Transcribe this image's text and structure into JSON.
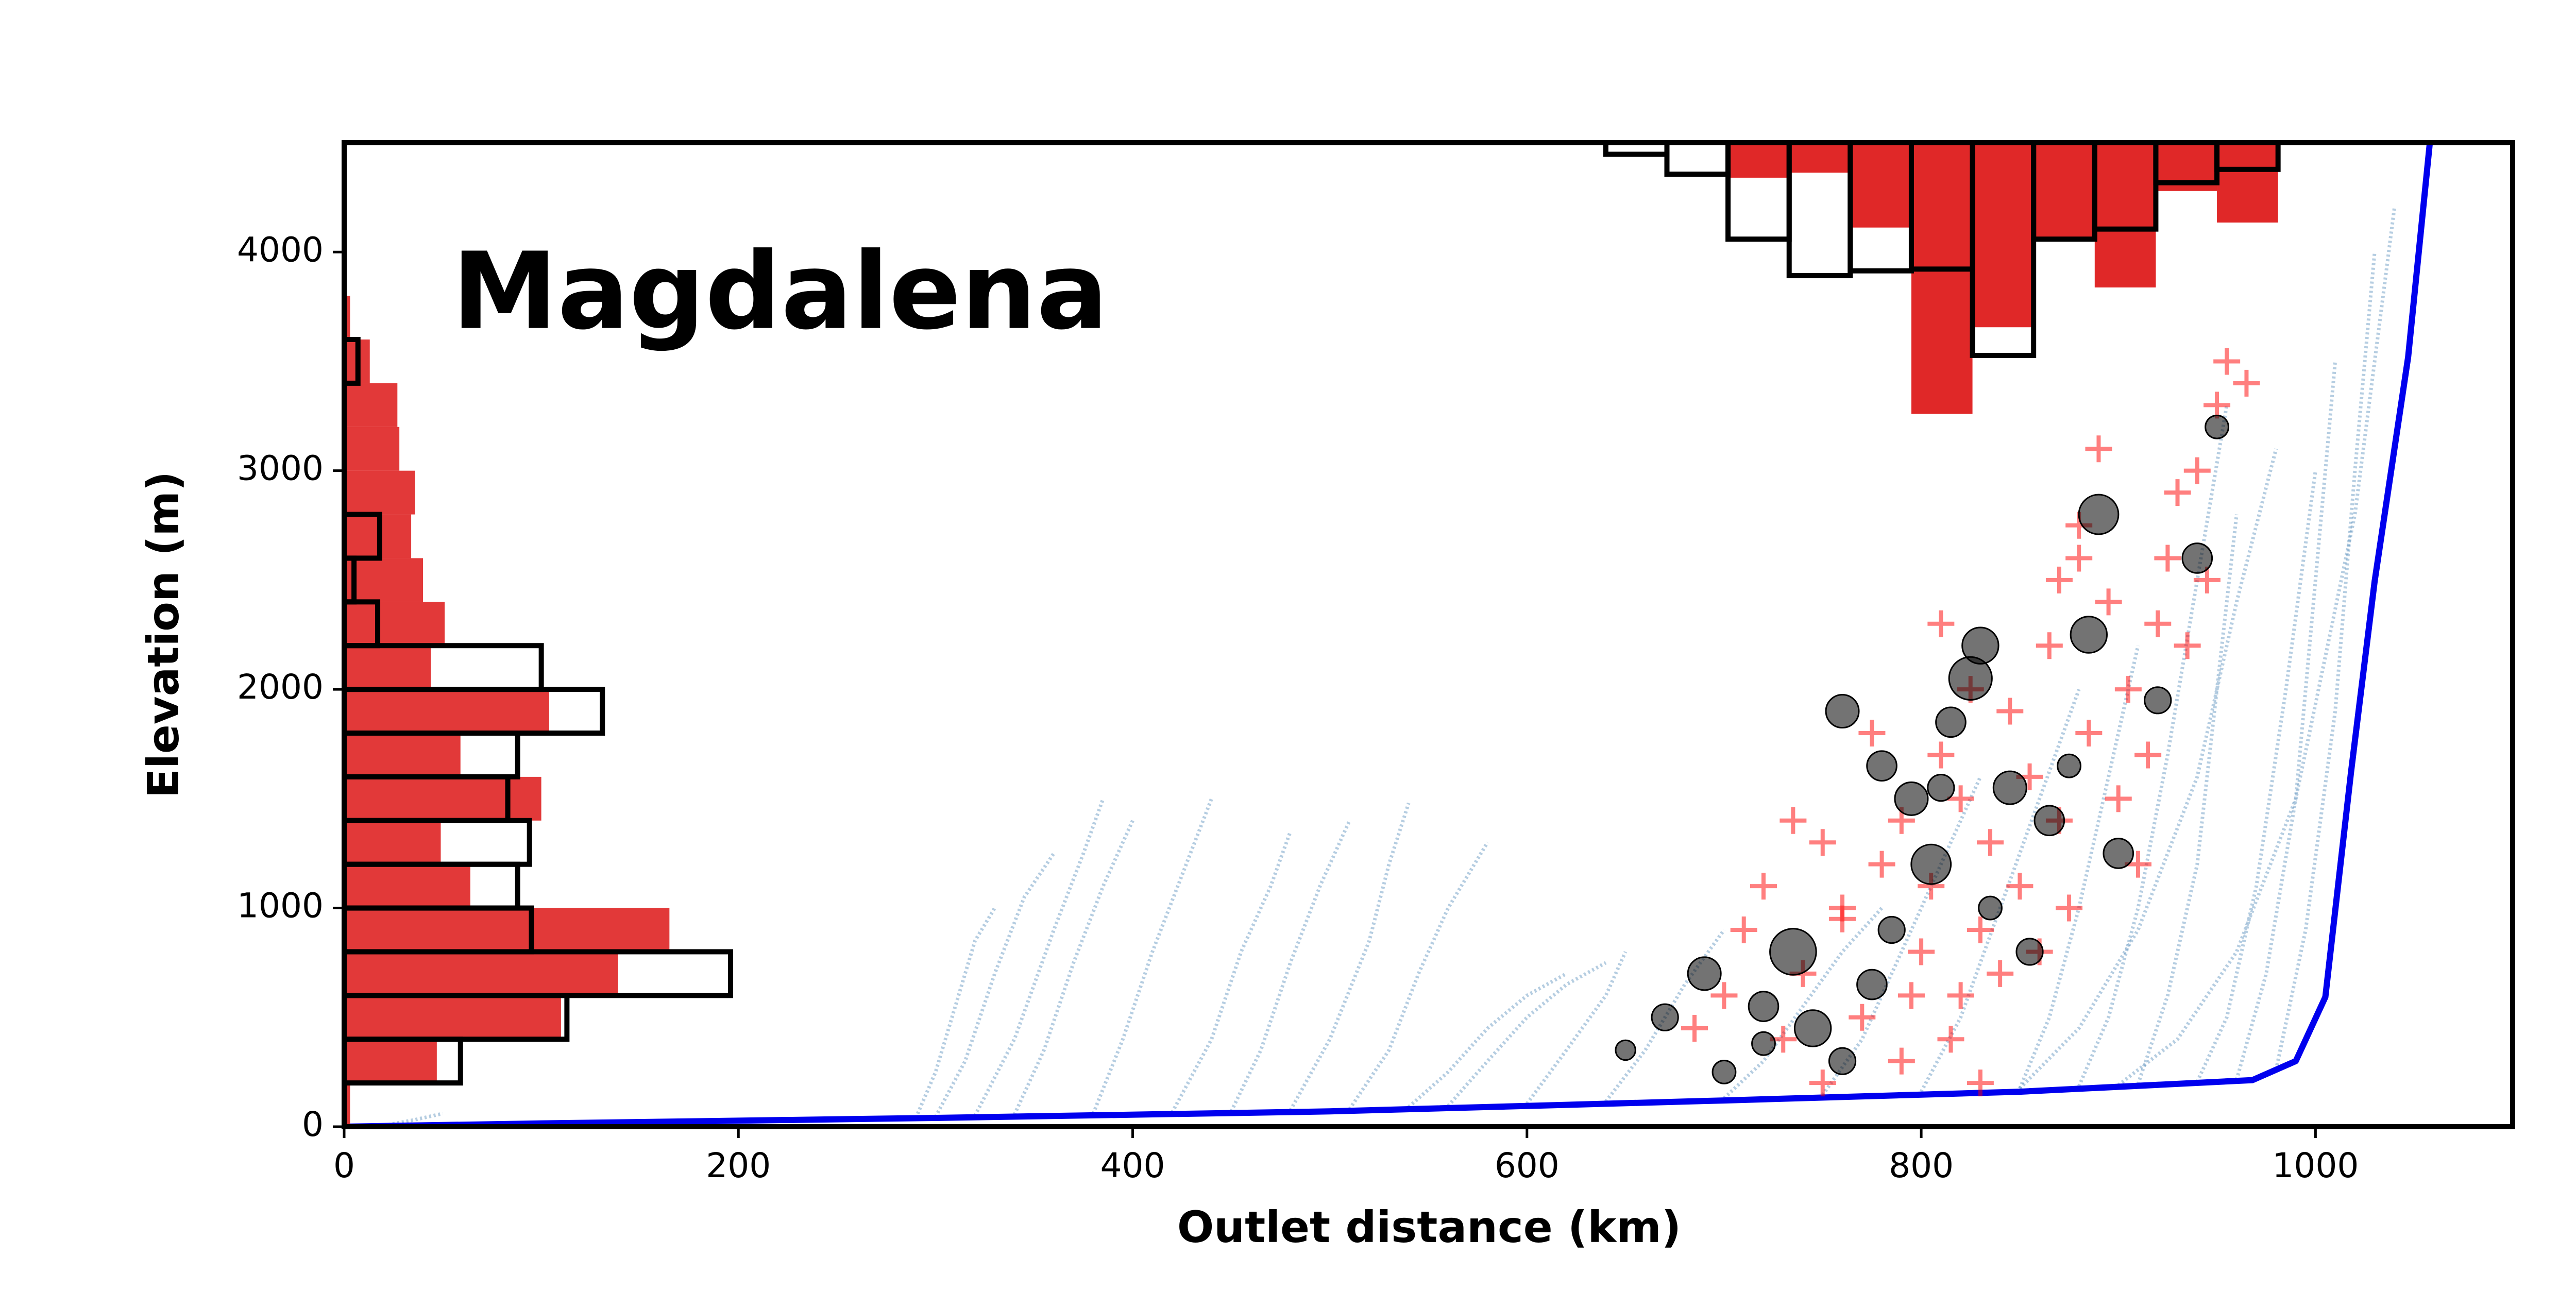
{
  "chart_data": {
    "type": "scatter",
    "title": "Magdalena",
    "x_label": "Outlet distance (km)",
    "y_label": "Elevation (m)",
    "xlim": [
      0,
      1100
    ],
    "ylim": [
      0,
      4500
    ],
    "xticks": [
      0,
      200,
      400,
      600,
      800,
      1000
    ],
    "yticks": [
      0,
      1000,
      2000,
      3000,
      4000
    ],
    "main_profile": {
      "color": "#0000ee",
      "x": [
        0,
        100,
        300,
        500,
        700,
        850,
        968,
        990,
        1005,
        1018,
        1030,
        1047,
        1058
      ],
      "values": [
        0,
        15,
        40,
        70,
        120,
        160,
        213,
        300,
        593,
        1620,
        2494,
        3520,
        4500
      ]
    },
    "tributary_color": "#4682b4",
    "tributaries": [
      {
        "x": [
          20,
          35,
          50
        ],
        "values": [
          5,
          30,
          60
        ]
      },
      {
        "x": [
          290,
          300,
          310,
          320,
          330
        ],
        "values": [
          40,
          250,
          550,
          850,
          1000
        ]
      },
      {
        "x": [
          300,
          315,
          330,
          345,
          360
        ],
        "values": [
          45,
          300,
          700,
          1050,
          1250
        ]
      },
      {
        "x": [
          320,
          340,
          360,
          375,
          385
        ],
        "values": [
          50,
          400,
          900,
          1250,
          1500
        ]
      },
      {
        "x": [
          340,
          355,
          370,
          385,
          400
        ],
        "values": [
          55,
          350,
          750,
          1100,
          1400
        ]
      },
      {
        "x": [
          380,
          395,
          410,
          425,
          440
        ],
        "values": [
          60,
          400,
          800,
          1150,
          1500
        ]
      },
      {
        "x": [
          420,
          440,
          455,
          470,
          480
        ],
        "values": [
          65,
          400,
          800,
          1100,
          1350
        ]
      },
      {
        "x": [
          450,
          465,
          480,
          495,
          510
        ],
        "values": [
          70,
          350,
          750,
          1100,
          1400
        ]
      },
      {
        "x": [
          480,
          500,
          520,
          530,
          540
        ],
        "values": [
          75,
          400,
          850,
          1200,
          1480
        ]
      },
      {
        "x": [
          510,
          530,
          545,
          560,
          580
        ],
        "values": [
          80,
          350,
          700,
          1000,
          1300
        ]
      },
      {
        "x": [
          540,
          560,
          580,
          600,
          620
        ],
        "values": [
          90,
          250,
          450,
          600,
          700
        ]
      },
      {
        "x": [
          560,
          580,
          600,
          620,
          640
        ],
        "values": [
          95,
          300,
          500,
          650,
          750
        ]
      },
      {
        "x": [
          600,
          620,
          640,
          650
        ],
        "values": [
          105,
          350,
          600,
          800
        ]
      },
      {
        "x": [
          640,
          660,
          680,
          700
        ],
        "values": [
          115,
          350,
          650,
          900
        ]
      },
      {
        "x": [
          700,
          720,
          740,
          760,
          780
        ],
        "values": [
          130,
          300,
          550,
          800,
          1000
        ]
      },
      {
        "x": [
          750,
          770,
          790,
          810,
          830
        ],
        "values": [
          145,
          400,
          800,
          1200,
          1600
        ]
      },
      {
        "x": [
          800,
          820,
          840,
          860,
          880
        ],
        "values": [
          160,
          500,
          1000,
          1500,
          2000
        ]
      },
      {
        "x": [
          850,
          865,
          880,
          895,
          910
        ],
        "values": [
          175,
          500,
          1000,
          1600,
          2200
        ]
      },
      {
        "x": [
          880,
          895,
          910,
          925,
          940,
          955
        ],
        "values": [
          185,
          500,
          1000,
          1700,
          2500,
          3300
        ]
      },
      {
        "x": [
          910,
          925,
          940,
          950,
          960
        ],
        "values": [
          195,
          600,
          1200,
          2000,
          2800
        ]
      },
      {
        "x": [
          940,
          955,
          970,
          985,
          1000
        ],
        "values": [
          205,
          500,
          1100,
          2000,
          3000
        ]
      },
      {
        "x": [
          960,
          975,
          990,
          1000,
          1010
        ],
        "values": [
          215,
          700,
          1500,
          2500,
          3500
        ]
      },
      {
        "x": [
          980,
          995,
          1010,
          1020,
          1030
        ],
        "values": [
          260,
          900,
          1900,
          3000,
          4000
        ]
      },
      {
        "x": [
          900,
          930,
          960,
          990,
          1020,
          1040
        ],
        "values": [
          190,
          400,
          800,
          1500,
          2800,
          4200
        ]
      },
      {
        "x": [
          850,
          880,
          910,
          940,
          960,
          980
        ],
        "values": [
          175,
          450,
          900,
          1600,
          2400,
          3100
        ]
      }
    ],
    "series": [
      {
        "color": "#ff0000",
        "marker": "plus",
        "x": [
          700,
          710,
          720,
          730,
          740,
          750,
          760,
          770,
          775,
          780,
          790,
          795,
          800,
          805,
          810,
          815,
          820,
          825,
          830,
          835,
          840,
          845,
          850,
          855,
          860,
          865,
          870,
          875,
          880,
          885,
          890,
          895,
          900,
          905,
          910,
          915,
          920,
          925,
          930,
          935,
          940,
          945,
          950,
          955,
          965,
          830,
          790,
          760,
          820,
          870,
          735,
          750,
          685,
          880,
          810
        ],
        "values": [
          600,
          900,
          1100,
          400,
          700,
          1300,
          950,
          500,
          1800,
          1200,
          1400,
          600,
          800,
          1100,
          1700,
          400,
          1500,
          2000,
          900,
          1300,
          700,
          1900,
          1100,
          1600,
          800,
          2200,
          1400,
          1000,
          2600,
          1800,
          3100,
          2400,
          1500,
          2000,
          1200,
          1700,
          2300,
          2600,
          2900,
          2200,
          3000,
          2500,
          3300,
          3500,
          3400,
          200,
          300,
          1000,
          600,
          2500,
          1400,
          200,
          450,
          2750,
          2300
        ]
      },
      {
        "color": "#000000",
        "marker": "circle",
        "x": [
          650,
          670,
          690,
          700,
          720,
          735,
          745,
          760,
          775,
          785,
          795,
          805,
          815,
          825,
          835,
          845,
          855,
          865,
          875,
          885,
          890,
          900,
          920,
          940,
          950,
          760,
          810,
          830,
          780,
          720
        ],
        "values": [
          350,
          500,
          700,
          250,
          550,
          800,
          450,
          300,
          650,
          900,
          1500,
          1200,
          1850,
          2050,
          1000,
          1550,
          800,
          1400,
          1650,
          2250,
          2800,
          1250,
          1950,
          2600,
          3200,
          1900,
          1550,
          2200,
          1650,
          380
        ],
        "sizes": [
          6,
          8,
          10,
          7,
          9,
          14,
          11,
          8,
          9,
          8,
          10,
          12,
          9,
          13,
          7,
          10,
          8,
          9,
          7,
          11,
          12,
          9,
          8,
          9,
          7,
          10,
          8,
          11,
          9,
          7
        ]
      }
    ],
    "left_histogram": {
      "bins": [
        0,
        200,
        400,
        600,
        800,
        1000,
        1200,
        1400,
        1600,
        1800,
        2000,
        2200,
        2400,
        2600,
        2800,
        3000,
        3200,
        3400,
        3600,
        3800
      ],
      "series": [
        {
          "color": "#e02828",
          "filled": true,
          "values": [
            3,
            47,
            110,
            139,
            165,
            64,
            49,
            100,
            59,
            104,
            44,
            51,
            40,
            34,
            36,
            28,
            27,
            13,
            3
          ]
        },
        {
          "color": "#000000",
          "filled": false,
          "values": [
            0,
            59,
            113,
            196,
            95,
            88,
            94,
            83,
            88,
            131,
            100,
            17,
            5,
            18,
            0,
            0,
            0,
            7,
            0
          ]
        }
      ]
    },
    "top_histogram": {
      "bins": [
        640,
        671,
        702,
        733,
        764,
        795,
        826,
        857,
        888,
        919,
        950,
        981
      ],
      "series": [
        {
          "color": "#e02828",
          "filled": true,
          "values": [
            0,
            0,
            160,
            137,
            388,
            1240,
            844,
            441,
            662,
            221,
            365
          ]
        },
        {
          "color": "#000000",
          "filled": false,
          "values": [
            53,
            144,
            441,
            608,
            586,
            578,
            973,
            441,
            395,
            183,
            122
          ]
        }
      ]
    }
  }
}
